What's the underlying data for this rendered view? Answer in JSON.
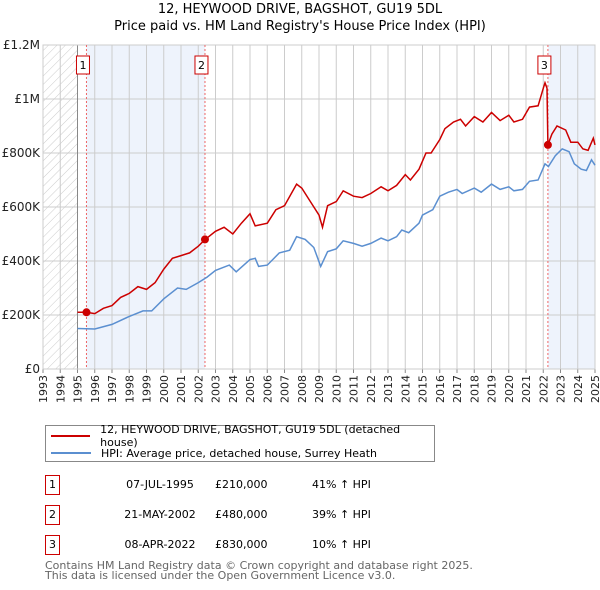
{
  "title_line1": "12, HEYWOOD DRIVE, BAGSHOT, GU19 5DL",
  "title_line2": "Price paid vs. HM Land Registry's House Price Index (HPI)",
  "legend": [
    {
      "label": "12, HEYWOOD DRIVE, BAGSHOT, GU19 5DL (detached house)",
      "color": "#cc0000"
    },
    {
      "label": "HPI: Average price, detached house, Surrey Heath",
      "color": "#5b8fd0"
    }
  ],
  "sales": [
    {
      "num": "1",
      "date": "07-JUL-1995",
      "price": "£210,000",
      "hpi": "41% ↑ HPI",
      "x": 1995.52,
      "y": 210
    },
    {
      "num": "2",
      "date": "21-MAY-2002",
      "price": "£480,000",
      "hpi": "39% ↑ HPI",
      "x": 2002.39,
      "y": 480
    },
    {
      "num": "3",
      "date": "08-APR-2022",
      "price": "£830,000",
      "hpi": "10% ↑ HPI",
      "x": 2022.27,
      "y": 830
    }
  ],
  "footer_line1": "Contains HM Land Registry data © Crown copyright and database right 2025.",
  "footer_line2": "This data is licensed under the Open Government Licence v3.0.",
  "chart_data": {
    "type": "line",
    "xlim": [
      1993,
      2025
    ],
    "ylim": [
      0,
      1200000
    ],
    "x_ticks": [
      "1993",
      "1994",
      "1995",
      "1996",
      "1997",
      "1998",
      "1999",
      "2000",
      "2001",
      "2002",
      "2003",
      "2004",
      "2005",
      "2006",
      "2007",
      "2008",
      "2009",
      "2010",
      "2011",
      "2012",
      "2013",
      "2014",
      "2015",
      "2016",
      "2017",
      "2018",
      "2019",
      "2020",
      "2021",
      "2022",
      "2023",
      "2024",
      "2025"
    ],
    "y_ticks": [
      {
        "v": 0,
        "label": "£0"
      },
      {
        "v": 200000,
        "label": "£200K"
      },
      {
        "v": 400000,
        "label": "£400K"
      },
      {
        "v": 600000,
        "label": "£600K"
      },
      {
        "v": 800000,
        "label": "£800K"
      },
      {
        "v": 1000000,
        "label": "£1M"
      },
      {
        "v": 1200000,
        "label": "£1.2M"
      }
    ],
    "grid": true,
    "hatched_range": [
      1993,
      1995
    ],
    "shaded_ranges": [
      [
        1995.52,
        2002.39
      ],
      [
        2022.27,
        2025
      ]
    ],
    "series": [
      {
        "name": "12, HEYWOOD DRIVE, BAGSHOT, GU19 5DL (detached house)",
        "color": "#cc0000",
        "unit": "£K",
        "points": [
          [
            1995,
            210
          ],
          [
            1995.5,
            210
          ],
          [
            1996,
            205
          ],
          [
            1996.5,
            225
          ],
          [
            1997,
            235
          ],
          [
            1997.5,
            265
          ],
          [
            1998,
            280
          ],
          [
            1998.5,
            305
          ],
          [
            1999,
            295
          ],
          [
            1999.5,
            320
          ],
          [
            2000,
            370
          ],
          [
            2000.5,
            410
          ],
          [
            2001,
            420
          ],
          [
            2001.5,
            430
          ],
          [
            2002,
            455
          ],
          [
            2002.4,
            480
          ],
          [
            2003,
            510
          ],
          [
            2003.5,
            525
          ],
          [
            2004,
            500
          ],
          [
            2004.5,
            540
          ],
          [
            2005,
            575
          ],
          [
            2005.3,
            530
          ],
          [
            2006,
            540
          ],
          [
            2006.5,
            590
          ],
          [
            2007,
            605
          ],
          [
            2007.7,
            685
          ],
          [
            2008,
            670
          ],
          [
            2008.5,
            620
          ],
          [
            2009,
            570
          ],
          [
            2009.2,
            525
          ],
          [
            2009.5,
            605
          ],
          [
            2010,
            620
          ],
          [
            2010.4,
            660
          ],
          [
            2011,
            640
          ],
          [
            2011.5,
            635
          ],
          [
            2012,
            650
          ],
          [
            2012.6,
            675
          ],
          [
            2013,
            660
          ],
          [
            2013.5,
            680
          ],
          [
            2014,
            720
          ],
          [
            2014.3,
            700
          ],
          [
            2014.8,
            740
          ],
          [
            2015.2,
            800
          ],
          [
            2015.5,
            800
          ],
          [
            2016,
            850
          ],
          [
            2016.3,
            890
          ],
          [
            2016.8,
            915
          ],
          [
            2017.2,
            925
          ],
          [
            2017.5,
            900
          ],
          [
            2018,
            935
          ],
          [
            2018.5,
            915
          ],
          [
            2019,
            950
          ],
          [
            2019.5,
            920
          ],
          [
            2020,
            940
          ],
          [
            2020.3,
            915
          ],
          [
            2020.8,
            925
          ],
          [
            2021.2,
            970
          ],
          [
            2021.7,
            975
          ],
          [
            2022,
            1040
          ],
          [
            2022.1,
            1060
          ],
          [
            2022.22,
            1040
          ],
          [
            2022.27,
            830
          ],
          [
            2022.5,
            870
          ],
          [
            2022.8,
            900
          ],
          [
            2023.3,
            885
          ],
          [
            2023.6,
            840
          ],
          [
            2024,
            840
          ],
          [
            2024.3,
            815
          ],
          [
            2024.6,
            810
          ],
          [
            2024.9,
            855
          ],
          [
            2025,
            830
          ]
        ]
      },
      {
        "name": "HPI: Average price, detached house, Surrey Heath",
        "color": "#5b8fd0",
        "unit": "£K",
        "points": [
          [
            1995,
            150
          ],
          [
            1996,
            148
          ],
          [
            1997,
            165
          ],
          [
            1998,
            195
          ],
          [
            1998.8,
            215
          ],
          [
            1999.3,
            215
          ],
          [
            2000,
            260
          ],
          [
            2000.8,
            300
          ],
          [
            2001.3,
            295
          ],
          [
            2002,
            320
          ],
          [
            2002.5,
            340
          ],
          [
            2003,
            365
          ],
          [
            2003.8,
            385
          ],
          [
            2004.2,
            360
          ],
          [
            2005,
            405
          ],
          [
            2005.3,
            410
          ],
          [
            2005.5,
            380
          ],
          [
            2006,
            385
          ],
          [
            2006.7,
            430
          ],
          [
            2007.3,
            440
          ],
          [
            2007.7,
            490
          ],
          [
            2008.2,
            480
          ],
          [
            2008.7,
            450
          ],
          [
            2009.1,
            380
          ],
          [
            2009.5,
            435
          ],
          [
            2010,
            445
          ],
          [
            2010.4,
            475
          ],
          [
            2011,
            465
          ],
          [
            2011.5,
            455
          ],
          [
            2012,
            465
          ],
          [
            2012.6,
            485
          ],
          [
            2013,
            475
          ],
          [
            2013.5,
            490
          ],
          [
            2013.8,
            515
          ],
          [
            2014.2,
            505
          ],
          [
            2014.8,
            540
          ],
          [
            2015,
            570
          ],
          [
            2015.6,
            590
          ],
          [
            2016,
            640
          ],
          [
            2016.5,
            655
          ],
          [
            2017,
            665
          ],
          [
            2017.3,
            650
          ],
          [
            2018,
            670
          ],
          [
            2018.4,
            655
          ],
          [
            2019,
            685
          ],
          [
            2019.5,
            665
          ],
          [
            2020,
            675
          ],
          [
            2020.3,
            660
          ],
          [
            2020.8,
            665
          ],
          [
            2021.2,
            695
          ],
          [
            2021.7,
            700
          ],
          [
            2022.1,
            760
          ],
          [
            2022.3,
            750
          ],
          [
            2022.7,
            790
          ],
          [
            2023.1,
            815
          ],
          [
            2023.5,
            805
          ],
          [
            2023.8,
            760
          ],
          [
            2024.2,
            740
          ],
          [
            2024.5,
            735
          ],
          [
            2024.8,
            775
          ],
          [
            2025,
            755
          ]
        ]
      }
    ]
  }
}
